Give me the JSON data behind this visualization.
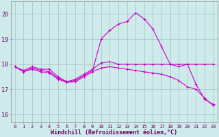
{
  "bg_color": "#ceeaea",
  "grid_color": "#a0c4c4",
  "line_color": "#cc00cc",
  "xlabel": "Windchill (Refroidissement éolien,°C)",
  "xlabel_fontsize": 6.0,
  "ylabel_vals": [
    16,
    17,
    18,
    19,
    20
  ],
  "xlim": [
    -0.5,
    23.5
  ],
  "ylim": [
    15.7,
    20.5
  ],
  "x_ticks": [
    0,
    1,
    2,
    3,
    4,
    5,
    6,
    7,
    8,
    9,
    10,
    11,
    12,
    13,
    14,
    15,
    16,
    17,
    18,
    19,
    20,
    21,
    22,
    23
  ],
  "tick_fontsize": 5.0,
  "ytick_fontsize": 6.0,
  "series1_x": [
    0,
    1,
    2,
    3,
    4,
    5,
    6,
    7,
    8,
    9,
    10,
    11,
    12,
    13,
    14,
    15,
    16,
    17,
    18,
    19,
    20,
    21,
    22,
    23
  ],
  "series1_y": [
    17.9,
    17.75,
    17.9,
    17.8,
    17.8,
    17.5,
    17.3,
    17.4,
    17.6,
    17.8,
    18.05,
    18.1,
    18.0,
    18.0,
    18.0,
    18.0,
    18.0,
    18.0,
    18.0,
    18.0,
    18.0,
    18.0,
    18.0,
    18.0
  ],
  "series2_x": [
    0,
    1,
    2,
    3,
    4,
    5,
    6,
    7,
    8,
    9,
    10,
    11,
    12,
    13,
    14,
    15,
    16,
    17,
    18,
    19,
    20,
    21,
    22,
    23
  ],
  "series2_y": [
    17.9,
    17.7,
    17.85,
    17.75,
    17.7,
    17.45,
    17.3,
    17.35,
    17.55,
    17.75,
    19.0,
    19.35,
    19.6,
    19.7,
    20.05,
    19.8,
    19.4,
    18.7,
    18.0,
    17.9,
    18.0,
    17.2,
    16.6,
    16.4
  ],
  "series3_x": [
    0,
    1,
    2,
    3,
    4,
    5,
    6,
    7,
    8,
    9,
    10,
    11,
    12,
    13,
    14,
    15,
    16,
    17,
    18,
    19,
    20,
    21,
    22,
    23
  ],
  "series3_y": [
    17.9,
    17.7,
    17.8,
    17.7,
    17.65,
    17.4,
    17.28,
    17.3,
    17.5,
    17.7,
    17.85,
    17.9,
    17.85,
    17.8,
    17.75,
    17.7,
    17.65,
    17.6,
    17.5,
    17.35,
    17.1,
    17.0,
    16.65,
    16.35
  ]
}
